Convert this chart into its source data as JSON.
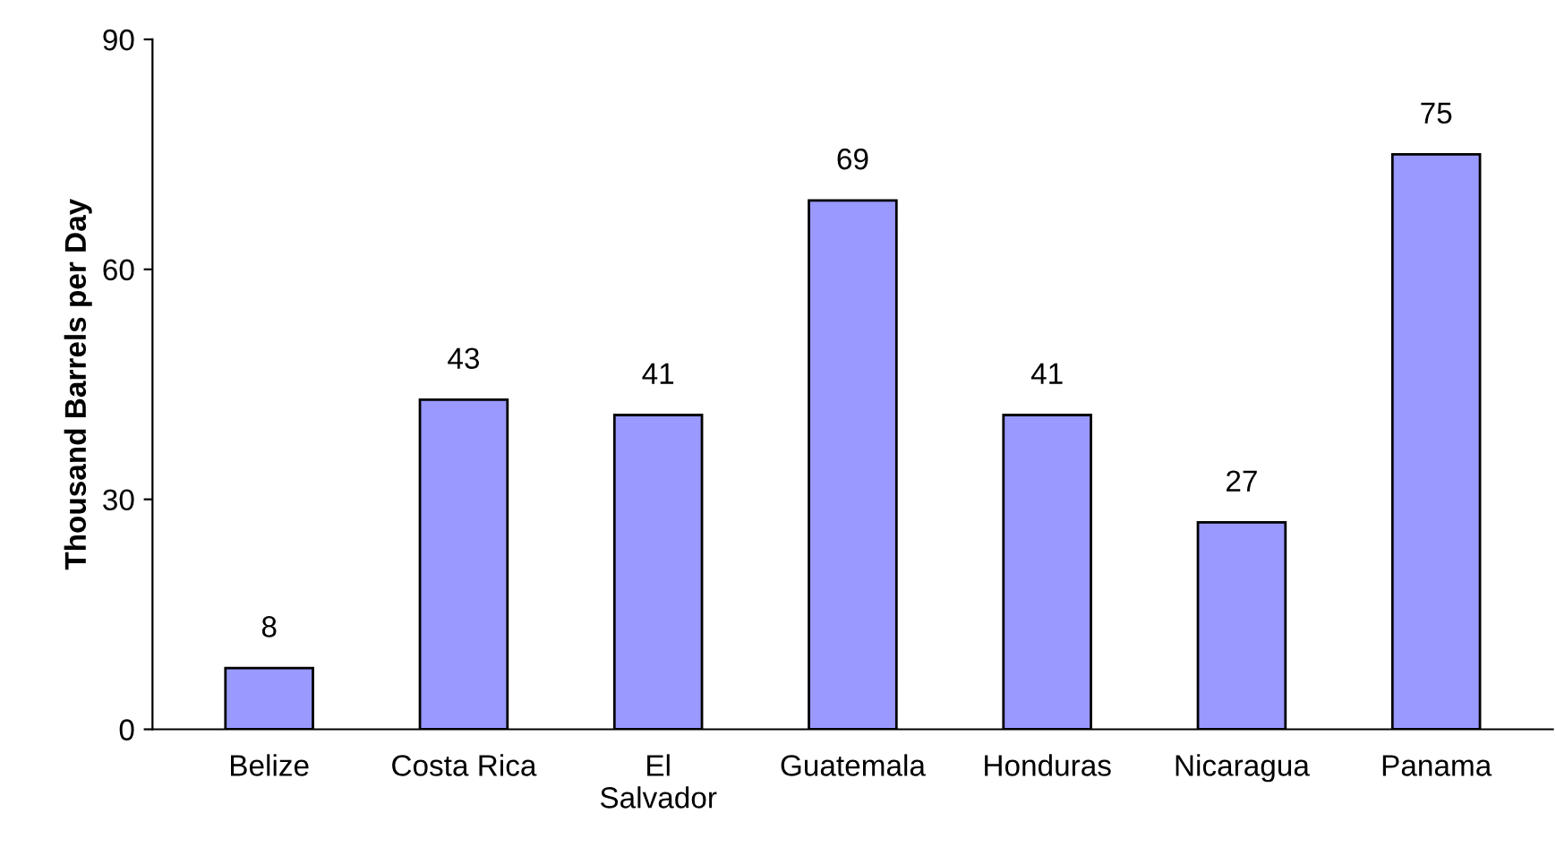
{
  "chart_data": {
    "type": "bar",
    "ylabel": "Thousand Barrels per Day",
    "categories": [
      "Belize",
      "Costa Rica",
      "El\nSalvador",
      "Guatemala",
      "Honduras",
      "Nicaragua",
      "Panama"
    ],
    "values": [
      8,
      43,
      41,
      69,
      41,
      27,
      75
    ],
    "color": "#9999ff",
    "ylim": [
      0,
      90
    ],
    "yticks": [
      0,
      30,
      60,
      90
    ],
    "data_labels": true,
    "grid": false,
    "legend": false
  }
}
